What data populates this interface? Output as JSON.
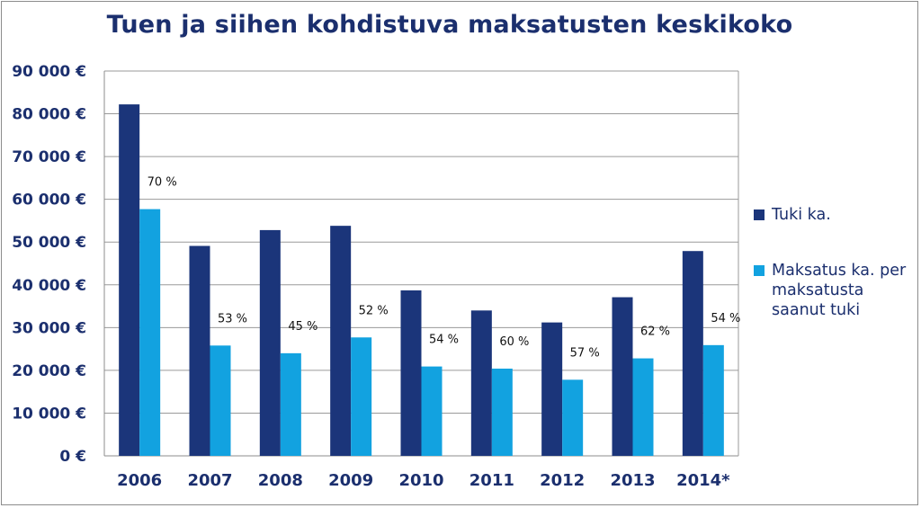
{
  "chart_data": {
    "type": "bar",
    "title": "Tuen ja siihen kohdistuva maksatusten keskikoko",
    "categories": [
      "2006",
      "2007",
      "2008",
      "2009",
      "2010",
      "2011",
      "2012",
      "2013",
      "2014*"
    ],
    "series": [
      {
        "name": "Tuki ka.",
        "color": "#1b357a",
        "values": [
          82200,
          49100,
          52800,
          53800,
          38700,
          34000,
          31200,
          37100,
          47900
        ]
      },
      {
        "name": "Maksatus ka. per maksatusta saanut tuki",
        "color": "#12a2e0",
        "values": [
          57700,
          25800,
          24000,
          27700,
          20900,
          20400,
          17800,
          22800,
          25900
        ]
      }
    ],
    "percent_labels": [
      "70 %",
      "53 %",
      "45 %",
      "52 %",
      "54 %",
      "60 %",
      "57 %",
      "62 %",
      "54 %"
    ],
    "y_ticks": [
      "0 €",
      "10 000 €",
      "20 000 €",
      "30 000 €",
      "40 000 €",
      "50 000 €",
      "60 000 €",
      "70 000 €",
      "80 000 €",
      "90 000 €"
    ],
    "ylim": [
      0,
      90000
    ],
    "xlabel": "",
    "ylabel": "",
    "grid": true,
    "legend_position": "right"
  }
}
